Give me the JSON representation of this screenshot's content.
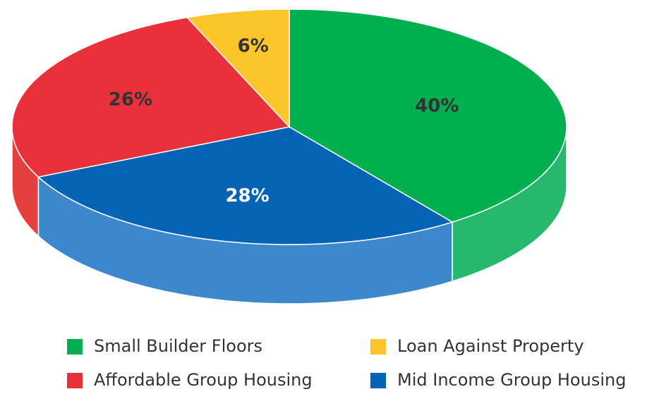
{
  "chart_data": {
    "type": "pie",
    "categories": [
      "Small Builder Floors",
      "Mid Income Group Housing",
      "Affordable Group Housing",
      "Loan Against Property"
    ],
    "values": [
      40,
      28,
      26,
      6
    ],
    "value_labels": [
      "40%",
      "28%",
      "26%",
      "6%"
    ],
    "colors": [
      "#00b050",
      "#0563b5",
      "#e8313a",
      "#fcc52a"
    ],
    "side_colors": [
      "#26b86c",
      "#3d88cc",
      "#e3403f",
      "#f5c232"
    ]
  }
}
